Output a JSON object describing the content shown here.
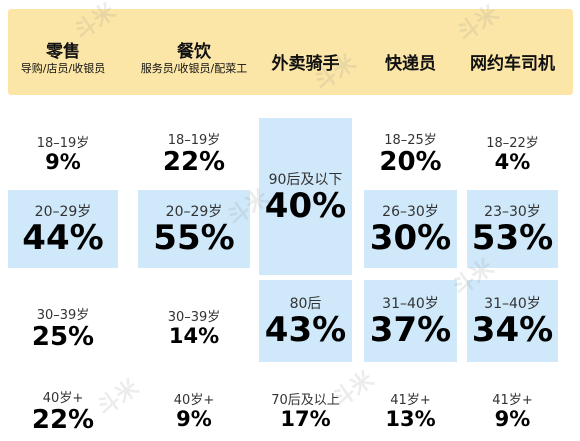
{
  "chart_data": {
    "type": "table",
    "columns": [
      {
        "title": "零售",
        "subtitle": "导购/店员/收银员"
      },
      {
        "title": "餐饮",
        "subtitle": "服务员/收银员/配菜工"
      },
      {
        "title": "外卖骑手",
        "subtitle": ""
      },
      {
        "title": "快递员",
        "subtitle": ""
      },
      {
        "title": "网约车司机",
        "subtitle": ""
      }
    ],
    "cells": [
      [
        {
          "label": "18–19岁",
          "value": "9%",
          "highlight": false
        },
        {
          "label": "20–29岁",
          "value": "44%",
          "highlight": true
        },
        {
          "label": "30–39岁",
          "value": "25%",
          "highlight": false
        },
        {
          "label": "40岁+",
          "value": "22%",
          "highlight": false
        }
      ],
      [
        {
          "label": "18–19岁",
          "value": "22%",
          "highlight": false
        },
        {
          "label": "20–29岁",
          "value": "55%",
          "highlight": true
        },
        {
          "label": "30–39岁",
          "value": "14%",
          "highlight": false
        },
        {
          "label": "40岁+",
          "value": "9%",
          "highlight": false
        }
      ],
      [
        {
          "label": "90后及以下",
          "value": "40%",
          "highlight": true
        },
        {
          "label": "80后",
          "value": "43%",
          "highlight": true
        },
        {
          "label": "70后及以上",
          "value": "17%",
          "highlight": false
        }
      ],
      [
        {
          "label": "18–25岁",
          "value": "20%",
          "highlight": false
        },
        {
          "label": "26–30岁",
          "value": "30%",
          "highlight": true
        },
        {
          "label": "31–40岁",
          "value": "37%",
          "highlight": true
        },
        {
          "label": "41岁+",
          "value": "13%",
          "highlight": false
        }
      ],
      [
        {
          "label": "18–22岁",
          "value": "4%",
          "highlight": false
        },
        {
          "label": "23–30岁",
          "value": "53%",
          "highlight": true
        },
        {
          "label": "31–40岁",
          "value": "34%",
          "highlight": true
        },
        {
          "label": "41岁+",
          "value": "9%",
          "highlight": false
        }
      ]
    ]
  },
  "colors": {
    "header_bg": "#fbe6a7",
    "highlight_bg": "#cfe8fa"
  },
  "watermark": "斗米"
}
